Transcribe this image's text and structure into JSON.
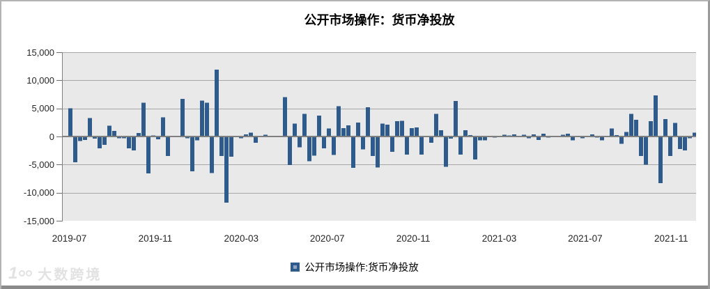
{
  "title": "公开市场操作：货币净投放",
  "legend": {
    "label": "公开市场操作:货币净投放"
  },
  "watermark": {
    "brand": "大数跨境",
    "logo": "100-logo"
  },
  "colors": {
    "bar": "#2f5a8c",
    "plot_background": "#e9e9e9",
    "gridline": "#a6a6a6",
    "zero_line": "#7f7f7f",
    "legend_marker_outer": "#2f5a8c",
    "legend_marker_inner": "#8fa5c0",
    "bottom_strip": "#8a8a8a"
  },
  "chart_data": {
    "type": "bar",
    "title": "公开市场操作：货币净投放",
    "series_name": "公开市场操作:货币净投放",
    "x_tick_labels": [
      "2019-07",
      "2019-11",
      "2020-03",
      "2020-07",
      "2020-11",
      "2021-03",
      "2021-07",
      "2021-11"
    ],
    "y_tick_labels": [
      "15,000",
      "10,000",
      "5,000",
      "0",
      "-5,000",
      "-10,000",
      "-15,000"
    ],
    "ylim": [
      -15000,
      15000
    ],
    "grid": "horizontal",
    "legend_position": "bottom",
    "values": [
      5000,
      -4600,
      -800,
      -600,
      3300,
      -400,
      -2100,
      -1500,
      1900,
      1000,
      -300,
      -300,
      -2100,
      -2500,
      600,
      6000,
      -6600,
      200,
      -500,
      3400,
      -3500,
      -100,
      150,
      6700,
      -300,
      -6200,
      -700,
      6400,
      6000,
      -6500,
      11900,
      -3500,
      -11800,
      -3600,
      0,
      -300,
      400,
      700,
      -1100,
      150,
      300,
      0,
      0,
      0,
      7000,
      -5100,
      2300,
      -1900,
      4000,
      -4400,
      -3400,
      3700,
      -2100,
      1400,
      -3300,
      5400,
      1500,
      2000,
      -5600,
      2500,
      -2300,
      5200,
      -3500,
      -5500,
      2300,
      2100,
      -2700,
      2700,
      2800,
      -3200,
      1500,
      1600,
      -3200,
      100,
      -1100,
      4000,
      1100,
      -5400,
      -400,
      6300,
      -3200,
      1100,
      250,
      -4100,
      -700,
      -700,
      0,
      -200,
      0,
      300,
      200,
      350,
      0,
      300,
      -300,
      400,
      -600,
      500,
      -200,
      0,
      100,
      300,
      500,
      -700,
      0,
      -300,
      0,
      400,
      -200,
      -700,
      0,
      1400,
      250,
      -1300,
      800,
      4000,
      3000,
      -3500,
      -5000,
      2700,
      7300,
      -8300,
      3100,
      -3500,
      2400,
      -2200,
      -2500,
      -300,
      700
    ]
  }
}
